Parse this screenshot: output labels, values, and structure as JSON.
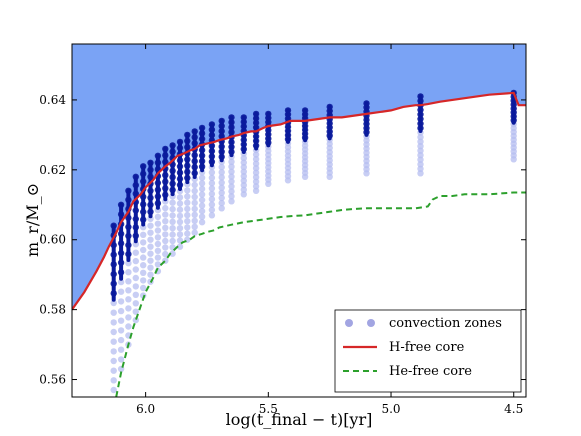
{
  "chart_data": {
    "type": "line",
    "xlabel": "log(t_final − t)[yr]",
    "ylabel": "m_r/M_⊙",
    "x_reversed": true,
    "xlim": [
      6.3,
      4.45
    ],
    "ylim": [
      0.555,
      0.656
    ],
    "xticks": [
      6.0,
      5.5,
      5.0,
      4.5
    ],
    "xtick_labels": [
      "6.0",
      "5.5",
      "5.0",
      "4.5"
    ],
    "yticks": [
      0.56,
      0.58,
      0.6,
      0.62,
      0.64
    ],
    "ytick_labels": [
      "0.56",
      "0.58",
      "0.60",
      "0.62",
      "0.64"
    ],
    "legend_position": "lower-right",
    "legend": [
      {
        "label": "convection zones",
        "style": "points",
        "color": "#7b7fd6"
      },
      {
        "label": "H-free core",
        "style": "solid",
        "color": "#d62728"
      },
      {
        "label": "He-free core",
        "style": "dashed",
        "color": "#2ca02c"
      }
    ],
    "colors": {
      "envelope_fill": "#7aa3f5",
      "points_dark": "#0a1a9c",
      "points_light": "#b6bdf0",
      "h_line": "#d62728",
      "he_line": "#2ca02c"
    },
    "series": [
      {
        "name": "H-free core",
        "x": [
          6.3,
          6.25,
          6.2,
          6.17,
          6.15,
          6.12,
          6.1,
          6.07,
          6.05,
          6.02,
          6.0,
          5.97,
          5.95,
          5.92,
          5.9,
          5.87,
          5.85,
          5.82,
          5.8,
          5.78,
          5.75,
          5.72,
          5.7,
          5.67,
          5.65,
          5.62,
          5.6,
          5.57,
          5.55,
          5.52,
          5.5,
          5.45,
          5.41,
          5.35,
          5.3,
          5.25,
          5.2,
          5.15,
          5.1,
          5.0,
          4.95,
          4.9,
          4.88,
          4.85,
          4.8,
          4.7,
          4.6,
          4.5,
          4.48,
          4.45
        ],
        "y": [
          0.58,
          0.585,
          0.591,
          0.595,
          0.598,
          0.602,
          0.605,
          0.608,
          0.611,
          0.613,
          0.615,
          0.617,
          0.619,
          0.621,
          0.622,
          0.624,
          0.6245,
          0.6255,
          0.626,
          0.627,
          0.6275,
          0.628,
          0.6285,
          0.629,
          0.6295,
          0.63,
          0.6305,
          0.631,
          0.631,
          0.632,
          0.6325,
          0.633,
          0.634,
          0.634,
          0.6345,
          0.635,
          0.635,
          0.6355,
          0.636,
          0.637,
          0.638,
          0.6385,
          0.6385,
          0.6388,
          0.6395,
          0.6405,
          0.6415,
          0.642,
          0.6385,
          0.6385
        ]
      },
      {
        "name": "He-free core",
        "x": [
          6.12,
          6.1,
          6.07,
          6.05,
          6.02,
          6.0,
          5.97,
          5.95,
          5.92,
          5.9,
          5.87,
          5.85,
          5.82,
          5.8,
          5.77,
          5.75,
          5.72,
          5.7,
          5.65,
          5.6,
          5.55,
          5.5,
          5.45,
          5.4,
          5.35,
          5.3,
          5.25,
          5.2,
          5.15,
          5.1,
          5.05,
          5.0,
          4.95,
          4.9,
          4.85,
          4.83,
          4.8,
          4.75,
          4.7,
          4.6,
          4.5,
          4.45
        ],
        "y": [
          0.555,
          0.562,
          0.57,
          0.575,
          0.581,
          0.585,
          0.589,
          0.592,
          0.594,
          0.596,
          0.598,
          0.5992,
          0.6,
          0.601,
          0.6017,
          0.6022,
          0.6027,
          0.6035,
          0.6043,
          0.605,
          0.6055,
          0.606,
          0.6065,
          0.6068,
          0.607,
          0.6075,
          0.608,
          0.6085,
          0.6088,
          0.609,
          0.609,
          0.609,
          0.609,
          0.609,
          0.6095,
          0.6115,
          0.6125,
          0.6125,
          0.613,
          0.613,
          0.6135,
          0.6135
        ]
      },
      {
        "name": "convection zones",
        "columns_x": [
          6.13,
          6.1,
          6.07,
          6.04,
          6.01,
          5.98,
          5.95,
          5.92,
          5.89,
          5.86,
          5.83,
          5.8,
          5.77,
          5.73,
          5.69,
          5.65,
          5.6,
          5.55,
          5.5,
          5.42,
          5.35,
          5.25,
          5.1,
          4.88,
          4.5
        ],
        "columns_ymin": [
          0.557,
          0.563,
          0.57,
          0.577,
          0.584,
          0.588,
          0.591,
          0.594,
          0.596,
          0.598,
          0.6,
          0.602,
          0.605,
          0.607,
          0.609,
          0.611,
          0.613,
          0.614,
          0.616,
          0.617,
          0.618,
          0.618,
          0.619,
          0.619,
          0.623
        ],
        "columns_ymax": [
          0.604,
          0.61,
          0.614,
          0.618,
          0.621,
          0.622,
          0.624,
          0.626,
          0.627,
          0.628,
          0.63,
          0.631,
          0.632,
          0.633,
          0.634,
          0.635,
          0.635,
          0.636,
          0.636,
          0.637,
          0.637,
          0.638,
          0.639,
          0.641,
          0.642
        ]
      }
    ]
  }
}
